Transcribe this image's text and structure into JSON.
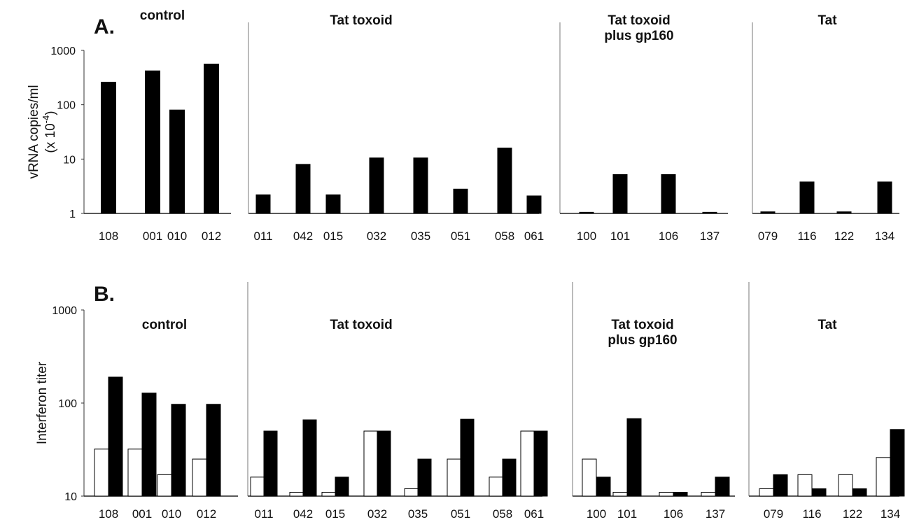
{
  "chart_data": [
    {
      "type": "bar",
      "panel_label": "A.",
      "ylabel_lines": [
        "vRNA copies/ml",
        "(x 10",
        "-4",
        ")"
      ],
      "yscale": "log",
      "ylim": [
        1,
        1000
      ],
      "yticks": [
        "1",
        "10",
        "100",
        "1000"
      ],
      "groups": [
        {
          "title_lines": [
            "control"
          ],
          "categories": [
            "108",
            "001",
            "010",
            "012"
          ],
          "series": [
            {
              "fill": "#000000",
              "values": [
                260,
                420,
                80,
                560
              ]
            }
          ]
        },
        {
          "title_lines": [
            "Tat toxoid"
          ],
          "categories": [
            "011",
            "042",
            "015",
            "032",
            "035",
            "051",
            "058",
            "061"
          ],
          "series": [
            {
              "fill": "#000000",
              "values": [
                2.2,
                8,
                2.2,
                10.5,
                10.5,
                2.8,
                16,
                2.1
              ]
            }
          ]
        },
        {
          "title_lines": [
            "Tat toxoid",
            "plus gp160"
          ],
          "categories": [
            "100",
            "101",
            "106",
            "137"
          ],
          "series": [
            {
              "fill": "#000000",
              "values": [
                1.05,
                5.2,
                5.2,
                1.05
              ]
            }
          ]
        },
        {
          "title_lines": [
            "Tat"
          ],
          "categories": [
            "079",
            "116",
            "122",
            "134"
          ],
          "series": [
            {
              "fill": "#000000",
              "values": [
                1.07,
                3.8,
                1.07,
                3.8
              ]
            }
          ]
        }
      ]
    },
    {
      "type": "bar",
      "panel_label": "B.",
      "ylabel_lines": [
        "Interferon titer"
      ],
      "yscale": "log",
      "ylim": [
        10,
        1000
      ],
      "yticks": [
        "10",
        "100",
        "1000"
      ],
      "groups": [
        {
          "title_lines": [
            "control"
          ],
          "categories": [
            "108",
            "001",
            "010",
            "012"
          ],
          "series": [
            {
              "fill": "#ffffff",
              "values": [
                32,
                32,
                17,
                25
              ]
            },
            {
              "fill": "#000000",
              "values": [
                190,
                128,
                97,
                97
              ]
            }
          ]
        },
        {
          "title_lines": [
            "Tat toxoid"
          ],
          "categories": [
            "011",
            "042",
            "015",
            "032",
            "035",
            "051",
            "058",
            "061"
          ],
          "series": [
            {
              "fill": "#ffffff",
              "values": [
                16,
                11,
                11,
                50,
                12,
                25,
                16,
                50
              ]
            },
            {
              "fill": "#000000",
              "values": [
                50,
                66,
                16,
                50,
                25,
                67,
                25,
                50
              ]
            }
          ]
        },
        {
          "title_lines": [
            "Tat toxoid",
            "plus gp160"
          ],
          "categories": [
            "100",
            "101",
            "106",
            "137"
          ],
          "series": [
            {
              "fill": "#ffffff",
              "values": [
                25,
                11,
                11,
                11
              ]
            },
            {
              "fill": "#000000",
              "values": [
                16,
                68,
                11,
                16
              ]
            }
          ]
        },
        {
          "title_lines": [
            "Tat"
          ],
          "categories": [
            "079",
            "116",
            "122",
            "134"
          ],
          "series": [
            {
              "fill": "#ffffff",
              "values": [
                12,
                17,
                17,
                26
              ]
            },
            {
              "fill": "#000000",
              "values": [
                17,
                12,
                12,
                52
              ]
            }
          ]
        }
      ]
    }
  ]
}
